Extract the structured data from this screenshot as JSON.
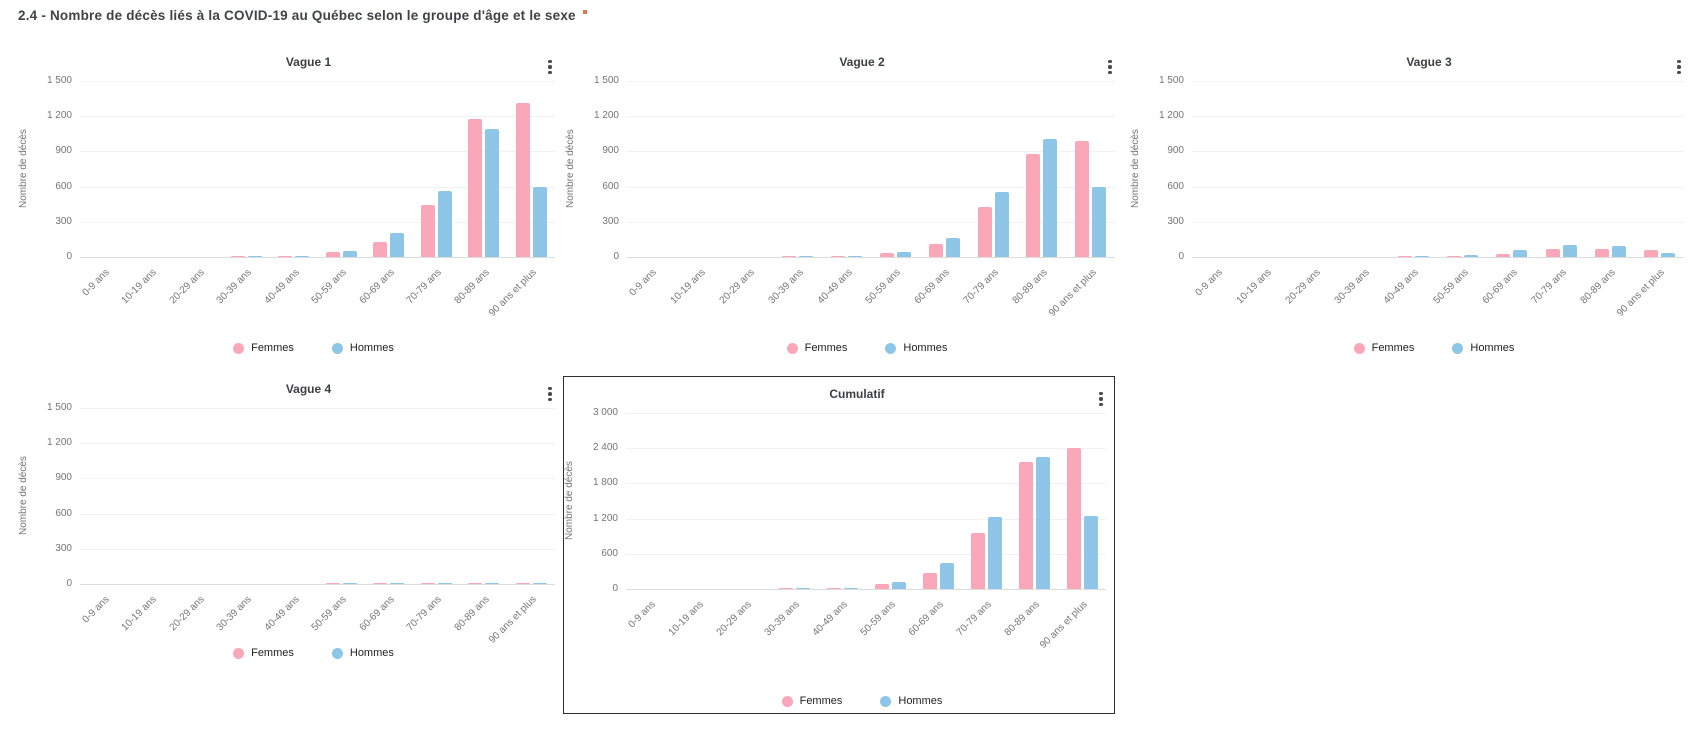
{
  "page": {
    "title": "2.4 - Nombre de décès liés à la COVID-19 au Québec selon le groupe d'âge et le sexe",
    "title_marker_color": "#e0764f"
  },
  "colors": {
    "femmes": "#f9a7b9",
    "hommes": "#8dc6e6",
    "title_text": "#3c4043",
    "axis_text": "#757575",
    "gridline": "#f1f1f1",
    "highlight_border": "#2f2f2f"
  },
  "legend": {
    "femmes": "Femmes",
    "hommes": "Hommes"
  },
  "chart_data": [
    {
      "type": "bar",
      "title": "Vague 1",
      "ylabel": "Nombre de décès",
      "xlabel": "",
      "ylim": [
        0,
        1500
      ],
      "y_ticks": [
        "0",
        "300",
        "600",
        "900",
        "1 200",
        "1 500"
      ],
      "grid": true,
      "legend_position": "bottom",
      "categories": [
        "0-9 ans",
        "10-19 ans",
        "20-29 ans",
        "30-39 ans",
        "40-49 ans",
        "50-59 ans",
        "60-69 ans",
        "70-79 ans",
        "80-89 ans",
        "90 ans et plus"
      ],
      "series": [
        {
          "name": "Femmes",
          "values": [
            0,
            0,
            0,
            2,
            5,
            40,
            130,
            440,
            1175,
            1310
          ]
        },
        {
          "name": "Hommes",
          "values": [
            0,
            0,
            0,
            2,
            10,
            55,
            205,
            565,
            1095,
            595
          ]
        }
      ]
    },
    {
      "type": "bar",
      "title": "Vague 2",
      "ylabel": "Nombre de décès",
      "xlabel": "",
      "ylim": [
        0,
        1500
      ],
      "y_ticks": [
        "0",
        "300",
        "600",
        "900",
        "1 200",
        "1 500"
      ],
      "grid": true,
      "legend_position": "bottom",
      "categories": [
        "0-9 ans",
        "10-19 ans",
        "20-29 ans",
        "30-39 ans",
        "40-49 ans",
        "50-59 ans",
        "60-69 ans",
        "70-79 ans",
        "80-89 ans",
        "90 ans et plus"
      ],
      "series": [
        {
          "name": "Femmes",
          "values": [
            0,
            0,
            0,
            2,
            8,
            30,
            110,
            425,
            875,
            985
          ]
        },
        {
          "name": "Hommes",
          "values": [
            0,
            0,
            0,
            2,
            10,
            45,
            165,
            555,
            1010,
            595
          ]
        }
      ]
    },
    {
      "type": "bar",
      "title": "Vague 3",
      "ylabel": "Nombre de décès",
      "xlabel": "",
      "ylim": [
        0,
        1500
      ],
      "y_ticks": [
        "0",
        "300",
        "600",
        "900",
        "1 200",
        "1 500"
      ],
      "grid": true,
      "legend_position": "bottom",
      "categories": [
        "0-9 ans",
        "10-19 ans",
        "20-29 ans",
        "30-39 ans",
        "40-49 ans",
        "50-59 ans",
        "60-69 ans",
        "70-79 ans",
        "80-89 ans",
        "90 ans et plus"
      ],
      "series": [
        {
          "name": "Femmes",
          "values": [
            0,
            0,
            0,
            0,
            2,
            8,
            25,
            70,
            65,
            60
          ]
        },
        {
          "name": "Hommes",
          "values": [
            0,
            0,
            0,
            0,
            2,
            18,
            60,
            100,
            95,
            35
          ]
        }
      ]
    },
    {
      "type": "bar",
      "title": "Vague 4",
      "ylabel": "Nombre de décès",
      "xlabel": "",
      "ylim": [
        0,
        1500
      ],
      "y_ticks": [
        "0",
        "300",
        "600",
        "900",
        "1 200",
        "1 500"
      ],
      "grid": true,
      "legend_position": "bottom",
      "categories": [
        "0-9 ans",
        "10-19 ans",
        "20-29 ans",
        "30-39 ans",
        "40-49 ans",
        "50-59 ans",
        "60-69 ans",
        "70-79 ans",
        "80-89 ans",
        "90 ans et plus"
      ],
      "series": [
        {
          "name": "Femmes",
          "values": [
            0,
            0,
            0,
            0,
            0,
            2,
            3,
            8,
            12,
            8
          ]
        },
        {
          "name": "Hommes",
          "values": [
            0,
            0,
            0,
            0,
            0,
            2,
            4,
            10,
            12,
            5
          ]
        }
      ]
    },
    {
      "type": "bar",
      "title": "Cumulatif",
      "ylabel": "Nombre de décès",
      "xlabel": "",
      "ylim": [
        0,
        3000
      ],
      "y_ticks": [
        "0",
        "600",
        "1 200",
        "1 800",
        "2 400",
        "3 000"
      ],
      "grid": true,
      "legend_position": "bottom",
      "highlighted": true,
      "categories": [
        "0-9 ans",
        "10-19 ans",
        "20-29 ans",
        "30-39 ans",
        "40-49 ans",
        "50-59 ans",
        "60-69 ans",
        "70-79 ans",
        "80-89 ans",
        "90 ans et plus"
      ],
      "series": [
        {
          "name": "Femmes",
          "values": [
            0,
            0,
            0,
            4,
            15,
            80,
            270,
            950,
            2160,
            2400
          ]
        },
        {
          "name": "Hommes",
          "values": [
            0,
            0,
            0,
            4,
            22,
            120,
            435,
            1230,
            2250,
            1240
          ]
        }
      ]
    }
  ]
}
